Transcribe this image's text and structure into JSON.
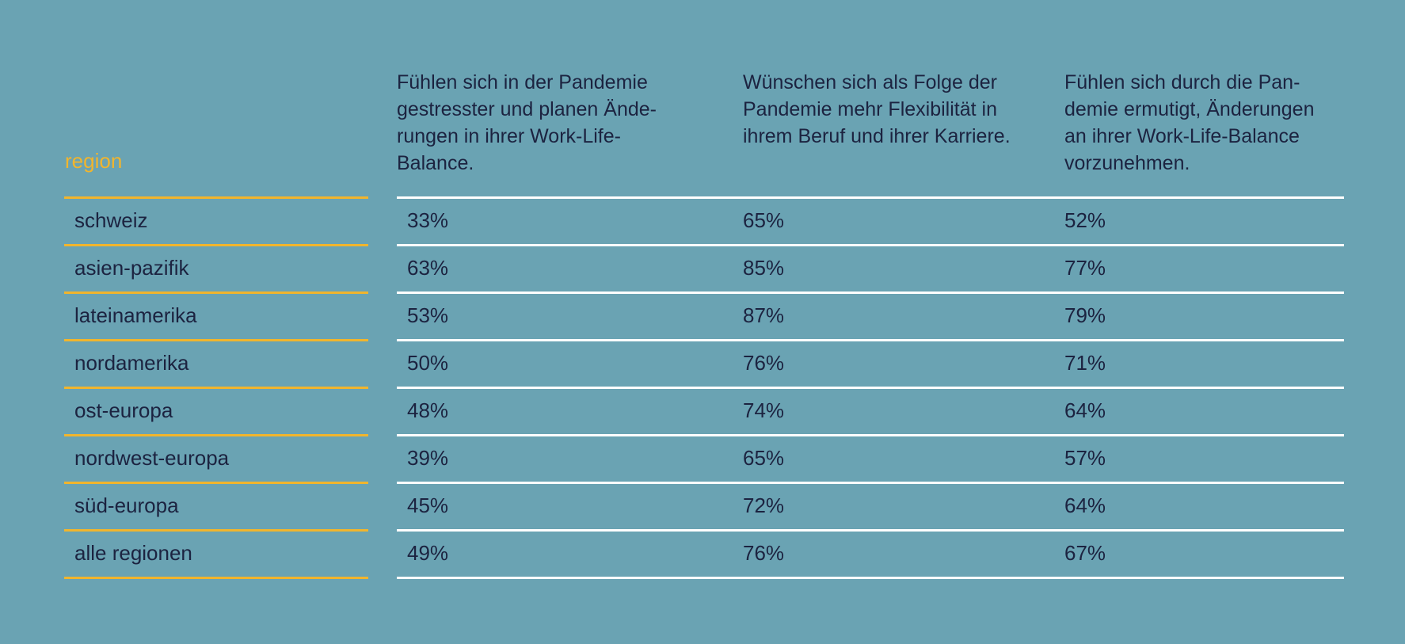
{
  "chart_data": {
    "type": "table",
    "columns": [
      "region",
      "Fühlen sich in der Pandemie\ngestresster und planen Ände-\nrungen in ihrer Work-Life-\nBalance.",
      "Wünschen sich als Folge der\nPandemie mehr Flexibilität in\nihrem Beruf und ihrer Karriere.",
      "Fühlen sich durch die Pan-\ndemie ermutigt, Änderungen\nan ihrer Work-Life-Balance\nvorzunehmen."
    ],
    "rows": [
      [
        "schweiz",
        "33%",
        "65%",
        "52%"
      ],
      [
        "asien-pazifik",
        "63%",
        "85%",
        "77%"
      ],
      [
        "lateinamerika",
        "53%",
        "87%",
        "79%"
      ],
      [
        "nordamerika",
        "50%",
        "76%",
        "71%"
      ],
      [
        "ost-europa",
        "48%",
        "74%",
        "64%"
      ],
      [
        "nordwest-europa",
        "39%",
        "65%",
        "57%"
      ],
      [
        "süd-europa",
        "45%",
        "72%",
        "64%"
      ],
      [
        "alle regionen",
        "49%",
        "76%",
        "67%"
      ]
    ]
  },
  "colors": {
    "background": "#6aa3b3",
    "accent_yellow": "#f1b52d",
    "text": "#1c2340",
    "divider_white": "#ffffff"
  }
}
